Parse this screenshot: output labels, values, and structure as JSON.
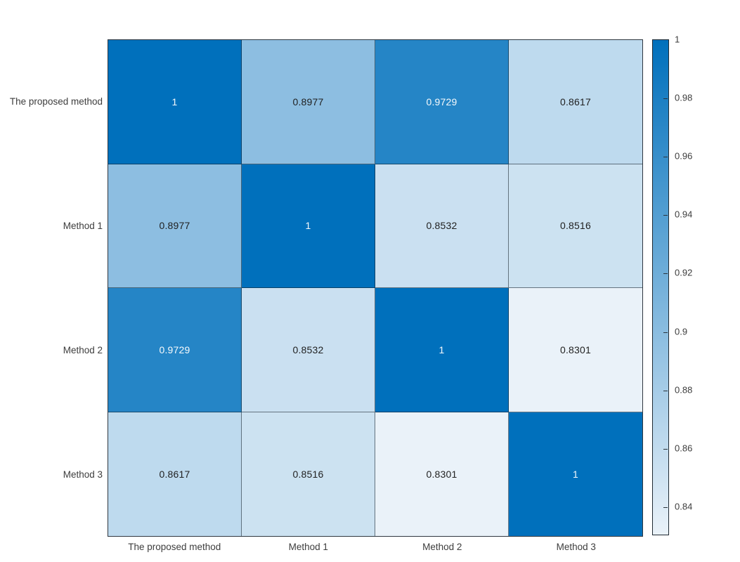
{
  "chart_data": {
    "type": "heatmap",
    "title": "",
    "categories": [
      "The proposed method",
      "Method 1",
      "Method 2",
      "Method 3"
    ],
    "row_labels": [
      "The proposed method",
      "Method 1",
      "Method 2",
      "Method 3"
    ],
    "col_labels": [
      "The proposed method",
      "Method 1",
      "Method 2",
      "Method 3"
    ],
    "matrix": [
      [
        1,
        0.8977,
        0.9729,
        0.8617
      ],
      [
        0.8977,
        1,
        0.8532,
        0.8516
      ],
      [
        0.9729,
        0.8532,
        1,
        0.8301
      ],
      [
        0.8617,
        0.8516,
        0.8301,
        1
      ]
    ],
    "cell_labels": [
      [
        "1",
        "0.8977",
        "0.9729",
        "0.8617"
      ],
      [
        "0.8977",
        "1",
        "0.8532",
        "0.8516"
      ],
      [
        "0.9729",
        "0.8532",
        "1",
        "0.8301"
      ],
      [
        "0.8617",
        "0.8516",
        "0.8301",
        "1"
      ]
    ],
    "colorbar": {
      "min": 0.8301,
      "max": 1,
      "tick_labels": [
        "1",
        "0.98",
        "0.96",
        "0.94",
        "0.92",
        "0.9",
        "0.88",
        "0.86",
        "0.84"
      ],
      "tick_values": [
        1,
        0.98,
        0.96,
        0.94,
        0.92,
        0.9,
        0.88,
        0.86,
        0.84
      ],
      "position": "right"
    },
    "style": {
      "color_low": "#EAF2F9",
      "color_high": "#0070BC",
      "text_dark": "#1f1f1f",
      "text_light": "#f7fafc",
      "light_text_threshold": 0.6,
      "legend": "colorbar",
      "grid": "on"
    }
  }
}
